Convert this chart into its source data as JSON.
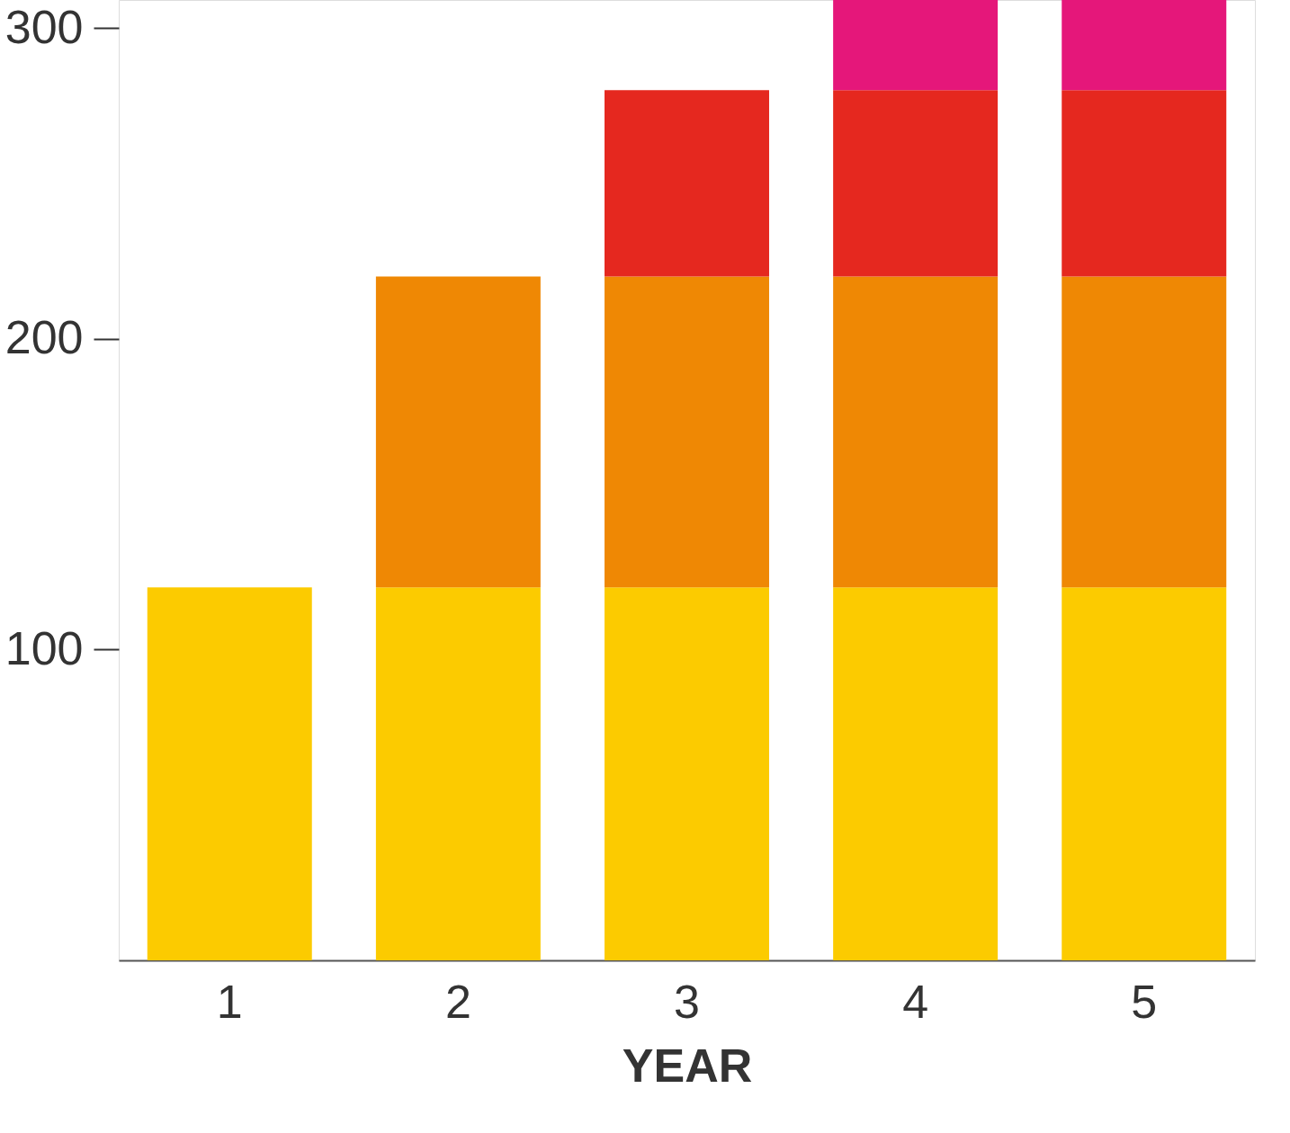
{
  "chart_data": {
    "type": "bar",
    "stacked": true,
    "xlabel": "YEAR",
    "categories": [
      "1",
      "2",
      "3",
      "4",
      "5"
    ],
    "series": [
      {
        "color": "#fccb00",
        "values": [
          120,
          120,
          120,
          120,
          120
        ]
      },
      {
        "color": "#ef8804",
        "values": [
          null,
          100,
          100,
          100,
          100
        ]
      },
      {
        "color": "#e5281f",
        "values": [
          null,
          null,
          60,
          60,
          60
        ]
      },
      {
        "color": "#e5177a",
        "values": [
          null,
          null,
          null,
          29,
          29
        ]
      }
    ],
    "ylim": [
      0,
      309
    ],
    "yticks": [
      100,
      200,
      300
    ],
    "grid": false,
    "legend": false
  }
}
